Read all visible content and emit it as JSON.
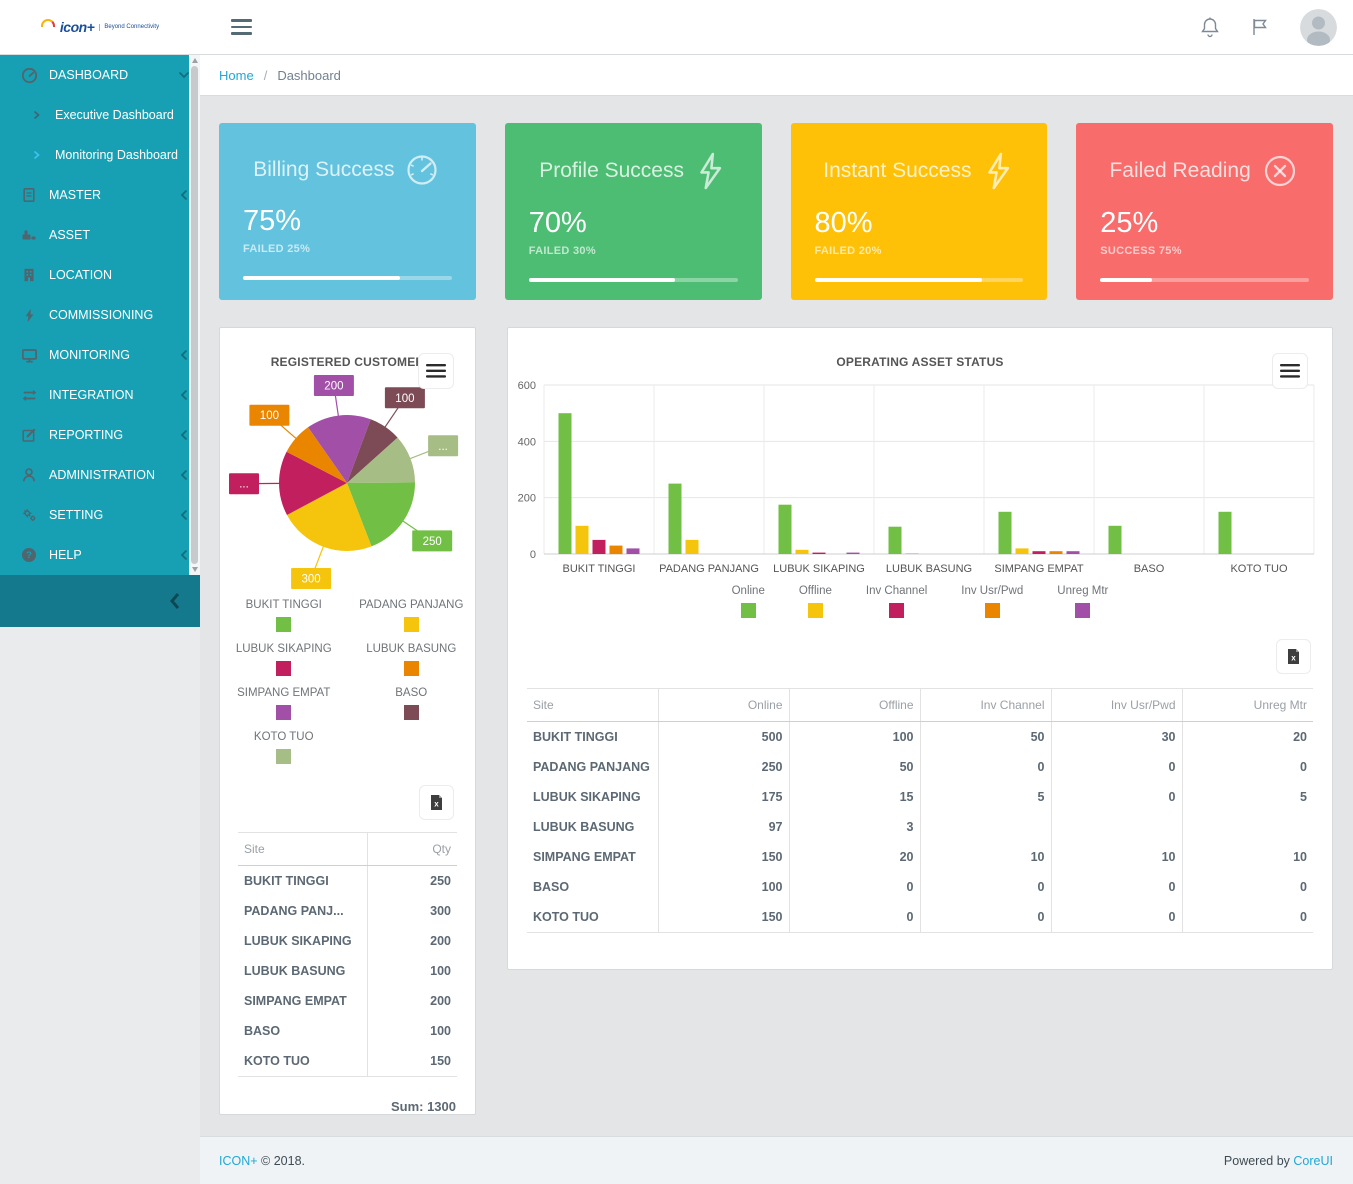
{
  "header": {
    "logo_text": "icon+",
    "logo_subtext": "Beyond Connectivity"
  },
  "sidebar": {
    "items": [
      {
        "label": "DASHBOARD",
        "icon": "speedometer-icon",
        "chevron": "down",
        "type": "item"
      },
      {
        "label": "Executive Dashboard",
        "type": "subitem",
        "active": false
      },
      {
        "label": "Monitoring Dashboard",
        "type": "subitem",
        "active": true
      },
      {
        "label": "MASTER",
        "icon": "document-icon",
        "chevron": "left",
        "type": "item"
      },
      {
        "label": "ASSET",
        "icon": "asset-icon",
        "chevron": "",
        "type": "item"
      },
      {
        "label": "LOCATION",
        "icon": "building-icon",
        "chevron": "",
        "type": "item"
      },
      {
        "label": "COMMISSIONING",
        "icon": "bolt-icon",
        "chevron": "",
        "type": "item"
      },
      {
        "label": "MONITORING",
        "icon": "monitor-icon",
        "chevron": "left",
        "type": "item"
      },
      {
        "label": "INTEGRATION",
        "icon": "arrows-icon",
        "chevron": "left",
        "type": "item"
      },
      {
        "label": "REPORTING",
        "icon": "edit-icon",
        "chevron": "left",
        "type": "item"
      },
      {
        "label": "ADMINISTRATION",
        "icon": "user-icon",
        "chevron": "left",
        "type": "item"
      },
      {
        "label": "SETTING",
        "icon": "gear-icon",
        "chevron": "left",
        "type": "item"
      },
      {
        "label": "HELP",
        "icon": "help-icon",
        "chevron": "left",
        "type": "item"
      }
    ]
  },
  "breadcrumb": {
    "home": "Home",
    "separator": "/",
    "current": "Dashboard"
  },
  "stat_cards": [
    {
      "title": "Billing Success",
      "icon": "gauge-icon",
      "value": "75%",
      "subtext": "FAILED 25%",
      "progress_pct": 75,
      "color": "#63c2de"
    },
    {
      "title": "Profile Success",
      "icon": "bolt-icon",
      "value": "70%",
      "subtext": "FAILED 30%",
      "progress_pct": 70,
      "color": "#4dbd74"
    },
    {
      "title": "Instant Success",
      "icon": "bolt-icon",
      "value": "80%",
      "subtext": "FAILED 20%",
      "progress_pct": 80,
      "color": "#ffc107"
    },
    {
      "title": "Failed Reading",
      "icon": "x-circle-icon",
      "value": "25%",
      "subtext": "SUCCESS 75%",
      "progress_pct": 25,
      "color": "#f86c6b"
    }
  ],
  "registered_customer": {
    "title": "REGISTERED CUSTOMER",
    "legend": [
      {
        "label": "BUKIT TINGGI",
        "color": "#71bf44"
      },
      {
        "label": "PADANG PANJANG",
        "color": "#f5c40d"
      },
      {
        "label": "LUBUK SIKAPING",
        "color": "#c21f5e"
      },
      {
        "label": "LUBUK BASUNG",
        "color": "#ea8500"
      },
      {
        "label": "SIMPANG EMPAT",
        "color": "#a24fa8"
      },
      {
        "label": "BASO",
        "color": "#7d4b55"
      },
      {
        "label": "KOTO TUO",
        "color": "#a6bd85"
      }
    ],
    "table": {
      "headers": [
        "Site",
        "Qty"
      ],
      "rows": [
        [
          "BUKIT TINGGI",
          "250"
        ],
        [
          "PADANG PANJ...",
          "300"
        ],
        [
          "LUBUK SIKAPING",
          "200"
        ],
        [
          "LUBUK BASUNG",
          "100"
        ],
        [
          "SIMPANG EMPAT",
          "200"
        ],
        [
          "BASO",
          "100"
        ],
        [
          "KOTO TUO",
          "150"
        ]
      ],
      "sum_label": "Sum: 1300"
    }
  },
  "operating_asset": {
    "title": "OPERATING ASSET STATUS",
    "table": {
      "headers": [
        "Site",
        "Online",
        "Offline",
        "Inv Channel",
        "Inv Usr/Pwd",
        "Unreg Mtr"
      ],
      "rows": [
        [
          "BUKIT TINGGI",
          "500",
          "100",
          "50",
          "30",
          "20"
        ],
        [
          "PADANG PANJANG",
          "250",
          "50",
          "0",
          "0",
          "0"
        ],
        [
          "LUBUK SIKAPING",
          "175",
          "15",
          "5",
          "0",
          "5"
        ],
        [
          "LUBUK BASUNG",
          "97",
          "3",
          "",
          "",
          ""
        ],
        [
          "SIMPANG EMPAT",
          "150",
          "20",
          "10",
          "10",
          "10"
        ],
        [
          "BASO",
          "100",
          "0",
          "0",
          "0",
          "0"
        ],
        [
          "KOTO TUO",
          "150",
          "0",
          "0",
          "0",
          "0"
        ]
      ]
    }
  },
  "chart_data": [
    {
      "type": "pie",
      "title": "REGISTERED CUSTOMER",
      "categories": [
        "SIMPANG EMPAT",
        "BASO",
        "KOTO TUO",
        "BUKIT TINGGI",
        "PADANG PANJANG",
        "LUBUK SIKAPING",
        "LUBUK BASUNG"
      ],
      "values": [
        200,
        100,
        150,
        250,
        300,
        200,
        100
      ],
      "colors": [
        "#a24fa8",
        "#7d4b55",
        "#a6bd85",
        "#71bf44",
        "#f5c40d",
        "#c21f5e",
        "#ea8500"
      ],
      "labels_displayed": [
        "200",
        "100",
        "...",
        "250",
        "300",
        "...",
        "100"
      ],
      "start_angle_deg": -35,
      "total": 1300,
      "legend_position": "bottom"
    },
    {
      "type": "bar",
      "title": "OPERATING ASSET STATUS",
      "categories": [
        "BUKIT TINGGI",
        "PADANG PANJANG",
        "LUBUK SIKAPING",
        "LUBUK BASUNG",
        "SIMPANG EMPAT",
        "BASO",
        "KOTO TUO"
      ],
      "series": [
        {
          "name": "Online",
          "color": "#71bf44",
          "values": [
            500,
            250,
            175,
            97,
            150,
            100,
            150
          ]
        },
        {
          "name": "Offline",
          "color": "#f5c40d",
          "values": [
            100,
            50,
            15,
            3,
            20,
            0,
            0
          ]
        },
        {
          "name": "Inv Channel",
          "color": "#c21f5e",
          "values": [
            50,
            0,
            5,
            null,
            10,
            0,
            0
          ]
        },
        {
          "name": "Inv Usr/Pwd",
          "color": "#ea8500",
          "values": [
            30,
            0,
            0,
            null,
            10,
            0,
            0
          ]
        },
        {
          "name": "Unreg Mtr",
          "color": "#a24fa8",
          "values": [
            20,
            0,
            5,
            null,
            10,
            0,
            0
          ]
        }
      ],
      "ylim": [
        0,
        600
      ],
      "yticks": [
        0,
        200,
        400,
        600
      ],
      "grid": true,
      "legend_position": "bottom"
    }
  ],
  "footer": {
    "brand": "ICON+",
    "copyright": "© 2018.",
    "powered_prefix": "Powered by",
    "powered_link": "CoreUI"
  }
}
